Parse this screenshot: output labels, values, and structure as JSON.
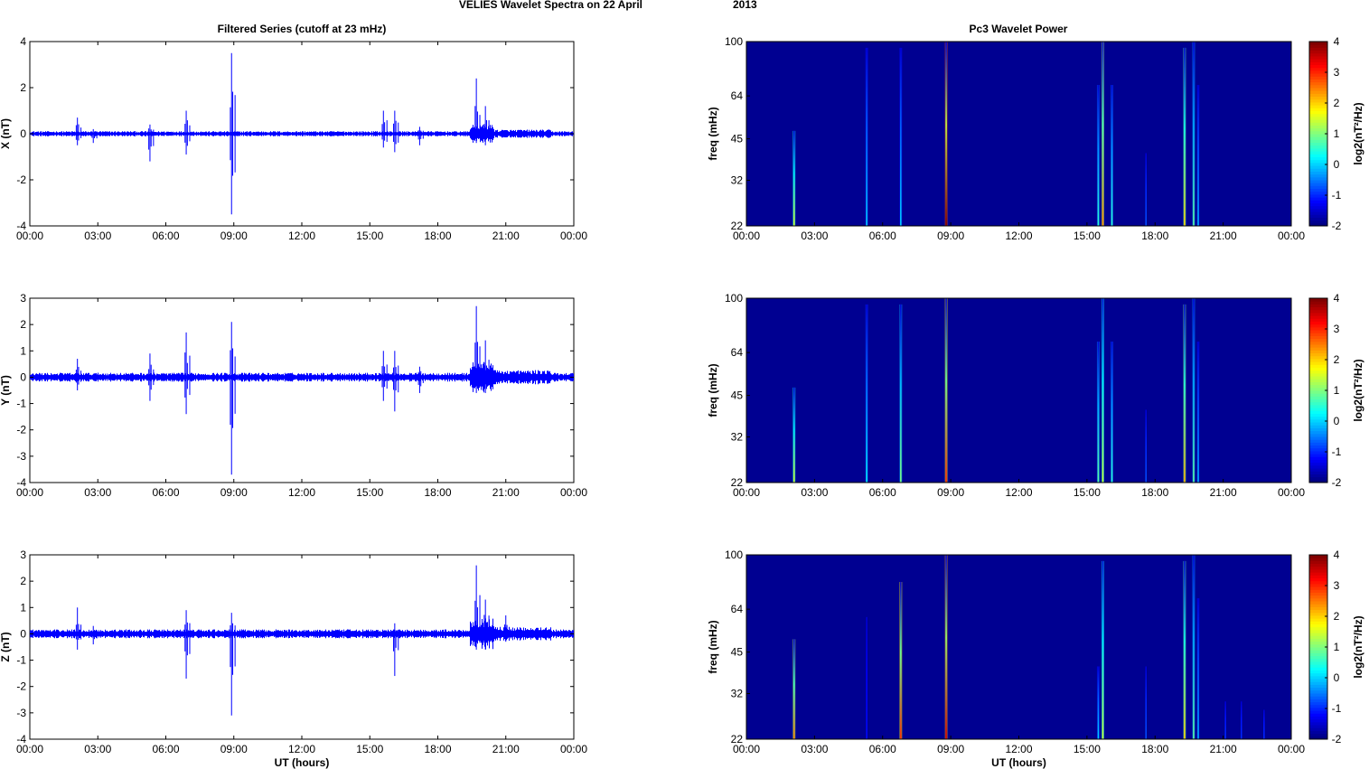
{
  "figure": {
    "title_left": "VELIES Wavelet Spectra on 22 April",
    "title_right": "2013",
    "left_column_title": "Filtered Series (cutoff at 23 mHz)",
    "right_column_title": "Pc3 Wavelet Power"
  },
  "chart_data": [
    {
      "type": "line",
      "component": "X",
      "ylabel": "X (nT)",
      "xlabel": "",
      "ylim": [
        -4,
        4
      ],
      "yticks": [
        "-4",
        "-2",
        "0",
        "2",
        "4"
      ],
      "xticks": [
        "00:00",
        "03:00",
        "06:00",
        "09:00",
        "12:00",
        "15:00",
        "18:00",
        "21:00",
        "00:00"
      ],
      "baseline_amplitude": 0.08,
      "series": [
        {
          "color": "#0000ff",
          "spikes": [
            {
              "t": 2.1,
              "max": 0.7,
              "min": -0.5
            },
            {
              "t": 2.8,
              "max": 0.2,
              "min": -0.4
            },
            {
              "t": 5.3,
              "max": 0.4,
              "min": -1.2
            },
            {
              "t": 6.9,
              "max": 1.0,
              "min": -0.9
            },
            {
              "t": 8.9,
              "max": 3.5,
              "min": -3.5
            },
            {
              "t": 15.6,
              "max": 1.0,
              "min": -0.6
            },
            {
              "t": 16.1,
              "max": 1.0,
              "min": -0.8
            },
            {
              "t": 17.2,
              "max": 0.3,
              "min": -0.5
            },
            {
              "t": 19.7,
              "max": 2.4,
              "min": -0.4
            },
            {
              "t": 20.1,
              "max": 1.2,
              "min": -0.5
            }
          ]
        }
      ]
    },
    {
      "type": "line",
      "component": "Y",
      "ylabel": "Y (nT)",
      "xlabel": "",
      "ylim": [
        -4,
        3
      ],
      "yticks": [
        "-4",
        "-3",
        "-2",
        "-1",
        "0",
        "1",
        "2",
        "3"
      ],
      "xticks": [
        "00:00",
        "03:00",
        "06:00",
        "09:00",
        "12:00",
        "15:00",
        "18:00",
        "21:00",
        "00:00"
      ],
      "baseline_amplitude": 0.12,
      "series": [
        {
          "color": "#0000ff",
          "spikes": [
            {
              "t": 2.1,
              "max": 0.7,
              "min": -0.5
            },
            {
              "t": 5.3,
              "max": 0.9,
              "min": -0.9
            },
            {
              "t": 6.9,
              "max": 1.7,
              "min": -1.4
            },
            {
              "t": 8.9,
              "max": 2.1,
              "min": -3.7
            },
            {
              "t": 15.6,
              "max": 1.0,
              "min": -0.9
            },
            {
              "t": 16.1,
              "max": 1.0,
              "min": -1.3
            },
            {
              "t": 17.2,
              "max": 0.4,
              "min": -0.6
            },
            {
              "t": 19.7,
              "max": 2.7,
              "min": -0.6
            },
            {
              "t": 20.1,
              "max": 1.4,
              "min": -0.6
            }
          ]
        }
      ]
    },
    {
      "type": "line",
      "component": "Z",
      "ylabel": "Z (nT)",
      "xlabel": "UT (hours)",
      "ylim": [
        -4,
        3
      ],
      "yticks": [
        "-4",
        "-3",
        "-2",
        "-1",
        "0",
        "1",
        "2",
        "3"
      ],
      "xticks": [
        "00:00",
        "03:00",
        "06:00",
        "09:00",
        "12:00",
        "15:00",
        "18:00",
        "21:00",
        "00:00"
      ],
      "baseline_amplitude": 0.12,
      "series": [
        {
          "color": "#0000ff",
          "spikes": [
            {
              "t": 2.1,
              "max": 1.0,
              "min": -0.6
            },
            {
              "t": 2.8,
              "max": 0.3,
              "min": -0.4
            },
            {
              "t": 6.9,
              "max": 0.9,
              "min": -1.7
            },
            {
              "t": 8.9,
              "max": 0.8,
              "min": -3.1
            },
            {
              "t": 16.1,
              "max": 0.4,
              "min": -1.6
            },
            {
              "t": 19.7,
              "max": 2.6,
              "min": -0.6
            },
            {
              "t": 20.1,
              "max": 1.3,
              "min": -0.6
            },
            {
              "t": 21.0,
              "max": 0.7,
              "min": -0.3
            }
          ]
        }
      ]
    },
    {
      "type": "heatmap",
      "component": "X",
      "ylabel": "freq (mHz)",
      "xlabel": "",
      "yticks": [
        "22",
        "32",
        "45",
        "64",
        "100"
      ],
      "xticks": [
        "00:00",
        "03:00",
        "06:00",
        "09:00",
        "12:00",
        "15:00",
        "18:00",
        "21:00",
        "00:00"
      ],
      "colorbar_label": "log2(nT²/Hz)",
      "colorbar_ticks": [
        "-2",
        "-1",
        "0",
        "1",
        "2",
        "3",
        "4"
      ],
      "clim": [
        -2,
        4
      ],
      "background_value": -1.9,
      "streaks": [
        {
          "t": 2.1,
          "fmax": 48,
          "peak": 1.5
        },
        {
          "t": 5.3,
          "fmax": 95,
          "peak": 0.0
        },
        {
          "t": 6.8,
          "fmax": 95,
          "peak": 0.0
        },
        {
          "t": 8.8,
          "fmax": 100,
          "peak": 4.0
        },
        {
          "t": 15.5,
          "fmax": 70,
          "peak": 0.5
        },
        {
          "t": 15.7,
          "fmax": 100,
          "peak": 2.5
        },
        {
          "t": 16.1,
          "fmax": 70,
          "peak": 0.5
        },
        {
          "t": 17.6,
          "fmax": 40,
          "peak": -0.8
        },
        {
          "t": 19.3,
          "fmax": 95,
          "peak": 2.0
        },
        {
          "t": 19.7,
          "fmax": 100,
          "peak": 0.8
        },
        {
          "t": 19.9,
          "fmax": 70,
          "peak": -0.2
        }
      ]
    },
    {
      "type": "heatmap",
      "component": "Y",
      "ylabel": "freq (mHz)",
      "xlabel": "",
      "yticks": [
        "22",
        "32",
        "45",
        "64",
        "100"
      ],
      "xticks": [
        "00:00",
        "03:00",
        "06:00",
        "09:00",
        "12:00",
        "15:00",
        "18:00",
        "21:00",
        "00:00"
      ],
      "colorbar_label": "log2(nT²/Hz)",
      "colorbar_ticks": [
        "-2",
        "-1",
        "0",
        "1",
        "2",
        "3",
        "4"
      ],
      "clim": [
        -2,
        4
      ],
      "background_value": -1.9,
      "streaks": [
        {
          "t": 2.1,
          "fmax": 48,
          "peak": 1.5
        },
        {
          "t": 5.3,
          "fmax": 95,
          "peak": 0.2
        },
        {
          "t": 6.8,
          "fmax": 95,
          "peak": 1.0
        },
        {
          "t": 8.8,
          "fmax": 100,
          "peak": 3.0
        },
        {
          "t": 15.5,
          "fmax": 70,
          "peak": 0.8
        },
        {
          "t": 15.7,
          "fmax": 100,
          "peak": 1.5
        },
        {
          "t": 16.1,
          "fmax": 70,
          "peak": 0.5
        },
        {
          "t": 17.6,
          "fmax": 40,
          "peak": -0.8
        },
        {
          "t": 19.3,
          "fmax": 95,
          "peak": 2.2
        },
        {
          "t": 19.7,
          "fmax": 100,
          "peak": 0.8
        },
        {
          "t": 19.9,
          "fmax": 70,
          "peak": -0.2
        }
      ]
    },
    {
      "type": "heatmap",
      "component": "Z",
      "ylabel": "freq (mHz)",
      "xlabel": "UT (hours)",
      "yticks": [
        "22",
        "32",
        "45",
        "64",
        "100"
      ],
      "xticks": [
        "00:00",
        "03:00",
        "06:00",
        "09:00",
        "12:00",
        "15:00",
        "18:00",
        "21:00",
        "00:00"
      ],
      "colorbar_label": "log2(nT²/Hz)",
      "colorbar_ticks": [
        "-2",
        "-1",
        "0",
        "1",
        "2",
        "3",
        "4"
      ],
      "clim": [
        -2,
        4
      ],
      "background_value": -1.9,
      "streaks": [
        {
          "t": 2.1,
          "fmax": 50,
          "peak": 2.5
        },
        {
          "t": 5.3,
          "fmax": 60,
          "peak": -1.2
        },
        {
          "t": 6.8,
          "fmax": 80,
          "peak": 3.0
        },
        {
          "t": 8.8,
          "fmax": 100,
          "peak": 3.5
        },
        {
          "t": 15.5,
          "fmax": 40,
          "peak": 0.0
        },
        {
          "t": 15.7,
          "fmax": 95,
          "peak": 1.5
        },
        {
          "t": 17.6,
          "fmax": 40,
          "peak": -0.8
        },
        {
          "t": 19.3,
          "fmax": 95,
          "peak": 2.0
        },
        {
          "t": 19.7,
          "fmax": 100,
          "peak": 0.8
        },
        {
          "t": 19.9,
          "fmax": 70,
          "peak": -0.2
        },
        {
          "t": 21.1,
          "fmax": 30,
          "peak": -1.0
        },
        {
          "t": 21.8,
          "fmax": 30,
          "peak": -1.0
        },
        {
          "t": 22.8,
          "fmax": 28,
          "peak": -1.0
        }
      ]
    }
  ]
}
